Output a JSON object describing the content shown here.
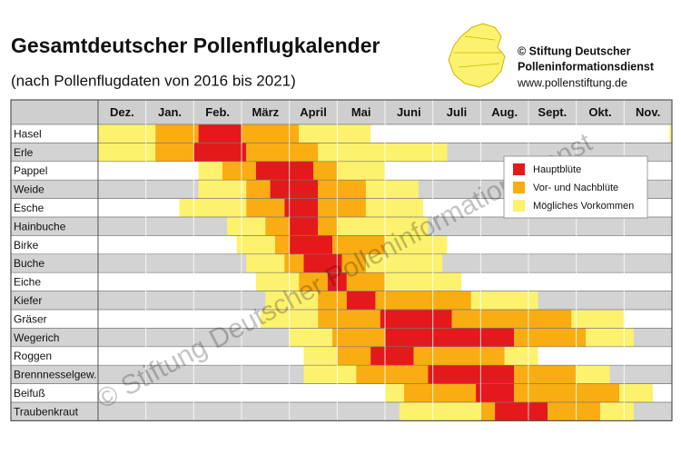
{
  "header": {
    "title": "Gesamtdeutscher Pollenflugkalender",
    "subtitle": "(nach Pollenflugdaten von 2016 bis 2021)",
    "credit": [
      "© Stiftung Deutscher",
      "Polleninformationsdienst",
      "www.pollenstiftung.de"
    ]
  },
  "months": [
    "Dez.",
    "Jan.",
    "Feb.",
    "März",
    "April",
    "Mai",
    "Juni",
    "Juli",
    "Aug.",
    "Sept.",
    "Okt.",
    "Nov."
  ],
  "legend": [
    {
      "label": "Hauptblüte",
      "color": "#e3191b"
    },
    {
      "label": "Vor- und Nachblüte",
      "color": "#f9ad12"
    },
    {
      "label": "Mögliches Vorkommen",
      "color": "#fdf26e"
    }
  ],
  "watermark": "© Stiftung Deutscher Polleninformationsdienst",
  "rows": [
    {
      "plant": "Hasel",
      "segments": [
        {
          "start": 0,
          "end": 1.2,
          "level": 2
        },
        {
          "start": 1.2,
          "end": 2.1,
          "level": 1
        },
        {
          "start": 2.1,
          "end": 3.0,
          "level": 0
        },
        {
          "start": 3.0,
          "end": 4.2,
          "level": 1
        },
        {
          "start": 4.2,
          "end": 5.7,
          "level": 2
        },
        {
          "start": 11.95,
          "end": 12,
          "level": 2
        }
      ]
    },
    {
      "plant": "Erle",
      "segments": [
        {
          "start": 0,
          "end": 1.2,
          "level": 2
        },
        {
          "start": 1.2,
          "end": 2.0,
          "level": 1
        },
        {
          "start": 2.0,
          "end": 3.1,
          "level": 0
        },
        {
          "start": 3.1,
          "end": 4.6,
          "level": 1
        },
        {
          "start": 4.6,
          "end": 7.3,
          "level": 2
        }
      ]
    },
    {
      "plant": "Pappel",
      "segments": [
        {
          "start": 2.1,
          "end": 2.6,
          "level": 2
        },
        {
          "start": 2.6,
          "end": 3.3,
          "level": 1
        },
        {
          "start": 3.3,
          "end": 4.5,
          "level": 0
        },
        {
          "start": 4.5,
          "end": 5.0,
          "level": 1
        },
        {
          "start": 5.0,
          "end": 6.0,
          "level": 2
        }
      ]
    },
    {
      "plant": "Weide",
      "segments": [
        {
          "start": 2.1,
          "end": 3.1,
          "level": 2
        },
        {
          "start": 3.1,
          "end": 3.6,
          "level": 1
        },
        {
          "start": 3.6,
          "end": 4.6,
          "level": 0
        },
        {
          "start": 4.6,
          "end": 5.6,
          "level": 1
        },
        {
          "start": 5.6,
          "end": 6.7,
          "level": 2
        }
      ]
    },
    {
      "plant": "Esche",
      "segments": [
        {
          "start": 1.7,
          "end": 3.1,
          "level": 2
        },
        {
          "start": 3.1,
          "end": 3.9,
          "level": 1
        },
        {
          "start": 3.9,
          "end": 4.6,
          "level": 0
        },
        {
          "start": 4.6,
          "end": 5.6,
          "level": 1
        },
        {
          "start": 5.6,
          "end": 6.8,
          "level": 2
        }
      ]
    },
    {
      "plant": "Hainbuche",
      "segments": [
        {
          "start": 2.7,
          "end": 3.5,
          "level": 2
        },
        {
          "start": 3.5,
          "end": 4.0,
          "level": 1
        },
        {
          "start": 4.0,
          "end": 4.6,
          "level": 0
        },
        {
          "start": 4.6,
          "end": 5.0,
          "level": 1
        },
        {
          "start": 5.0,
          "end": 6.9,
          "level": 2
        }
      ]
    },
    {
      "plant": "Birke",
      "segments": [
        {
          "start": 2.9,
          "end": 3.7,
          "level": 2
        },
        {
          "start": 3.7,
          "end": 4.0,
          "level": 1
        },
        {
          "start": 4.0,
          "end": 4.9,
          "level": 0
        },
        {
          "start": 4.9,
          "end": 6.0,
          "level": 1
        },
        {
          "start": 6.0,
          "end": 7.3,
          "level": 2
        }
      ]
    },
    {
      "plant": "Buche",
      "segments": [
        {
          "start": 3.1,
          "end": 3.9,
          "level": 2
        },
        {
          "start": 3.9,
          "end": 4.3,
          "level": 1
        },
        {
          "start": 4.3,
          "end": 5.1,
          "level": 0
        },
        {
          "start": 5.1,
          "end": 5.6,
          "level": 1
        },
        {
          "start": 5.6,
          "end": 7.2,
          "level": 2
        }
      ]
    },
    {
      "plant": "Eiche",
      "segments": [
        {
          "start": 3.3,
          "end": 4.2,
          "level": 2
        },
        {
          "start": 4.2,
          "end": 4.8,
          "level": 1
        },
        {
          "start": 4.8,
          "end": 5.2,
          "level": 0
        },
        {
          "start": 5.2,
          "end": 6.0,
          "level": 1
        },
        {
          "start": 6.0,
          "end": 7.6,
          "level": 2
        }
      ]
    },
    {
      "plant": "Kiefer",
      "segments": [
        {
          "start": 3.5,
          "end": 4.6,
          "level": 2
        },
        {
          "start": 4.6,
          "end": 5.2,
          "level": 1
        },
        {
          "start": 5.2,
          "end": 5.8,
          "level": 0
        },
        {
          "start": 5.8,
          "end": 7.8,
          "level": 1
        },
        {
          "start": 7.8,
          "end": 9.2,
          "level": 2
        }
      ]
    },
    {
      "plant": "Gräser",
      "segments": [
        {
          "start": 3.4,
          "end": 4.6,
          "level": 2
        },
        {
          "start": 4.6,
          "end": 5.9,
          "level": 1
        },
        {
          "start": 5.9,
          "end": 7.4,
          "level": 0
        },
        {
          "start": 7.4,
          "end": 9.9,
          "level": 1
        },
        {
          "start": 9.9,
          "end": 11.0,
          "level": 2
        }
      ]
    },
    {
      "plant": "Wegerich",
      "segments": [
        {
          "start": 4.0,
          "end": 4.9,
          "level": 2
        },
        {
          "start": 4.9,
          "end": 6.0,
          "level": 1
        },
        {
          "start": 6.0,
          "end": 8.7,
          "level": 0
        },
        {
          "start": 8.7,
          "end": 10.2,
          "level": 1
        },
        {
          "start": 10.2,
          "end": 11.2,
          "level": 2
        }
      ]
    },
    {
      "plant": "Roggen",
      "segments": [
        {
          "start": 4.3,
          "end": 5.0,
          "level": 2
        },
        {
          "start": 5.0,
          "end": 5.7,
          "level": 1
        },
        {
          "start": 5.7,
          "end": 6.6,
          "level": 0
        },
        {
          "start": 6.6,
          "end": 8.5,
          "level": 1
        },
        {
          "start": 8.5,
          "end": 9.2,
          "level": 2
        }
      ]
    },
    {
      "plant": "Brennnesselgew.",
      "segments": [
        {
          "start": 4.3,
          "end": 5.4,
          "level": 2
        },
        {
          "start": 5.4,
          "end": 6.9,
          "level": 1
        },
        {
          "start": 6.9,
          "end": 8.7,
          "level": 0
        },
        {
          "start": 8.7,
          "end": 10.0,
          "level": 1
        },
        {
          "start": 10.0,
          "end": 10.7,
          "level": 2
        }
      ]
    },
    {
      "plant": "Beifuß",
      "segments": [
        {
          "start": 6.0,
          "end": 6.4,
          "level": 2
        },
        {
          "start": 6.4,
          "end": 7.9,
          "level": 1
        },
        {
          "start": 7.9,
          "end": 8.7,
          "level": 0
        },
        {
          "start": 8.7,
          "end": 10.9,
          "level": 1
        },
        {
          "start": 10.9,
          "end": 11.6,
          "level": 2
        }
      ]
    },
    {
      "plant": "Traubenkraut",
      "segments": [
        {
          "start": 6.3,
          "end": 8.0,
          "level": 2
        },
        {
          "start": 8.0,
          "end": 8.3,
          "level": 1
        },
        {
          "start": 8.3,
          "end": 9.4,
          "level": 0
        },
        {
          "start": 9.4,
          "end": 10.5,
          "level": 1
        },
        {
          "start": 10.5,
          "end": 11.2,
          "level": 2
        }
      ]
    }
  ]
}
